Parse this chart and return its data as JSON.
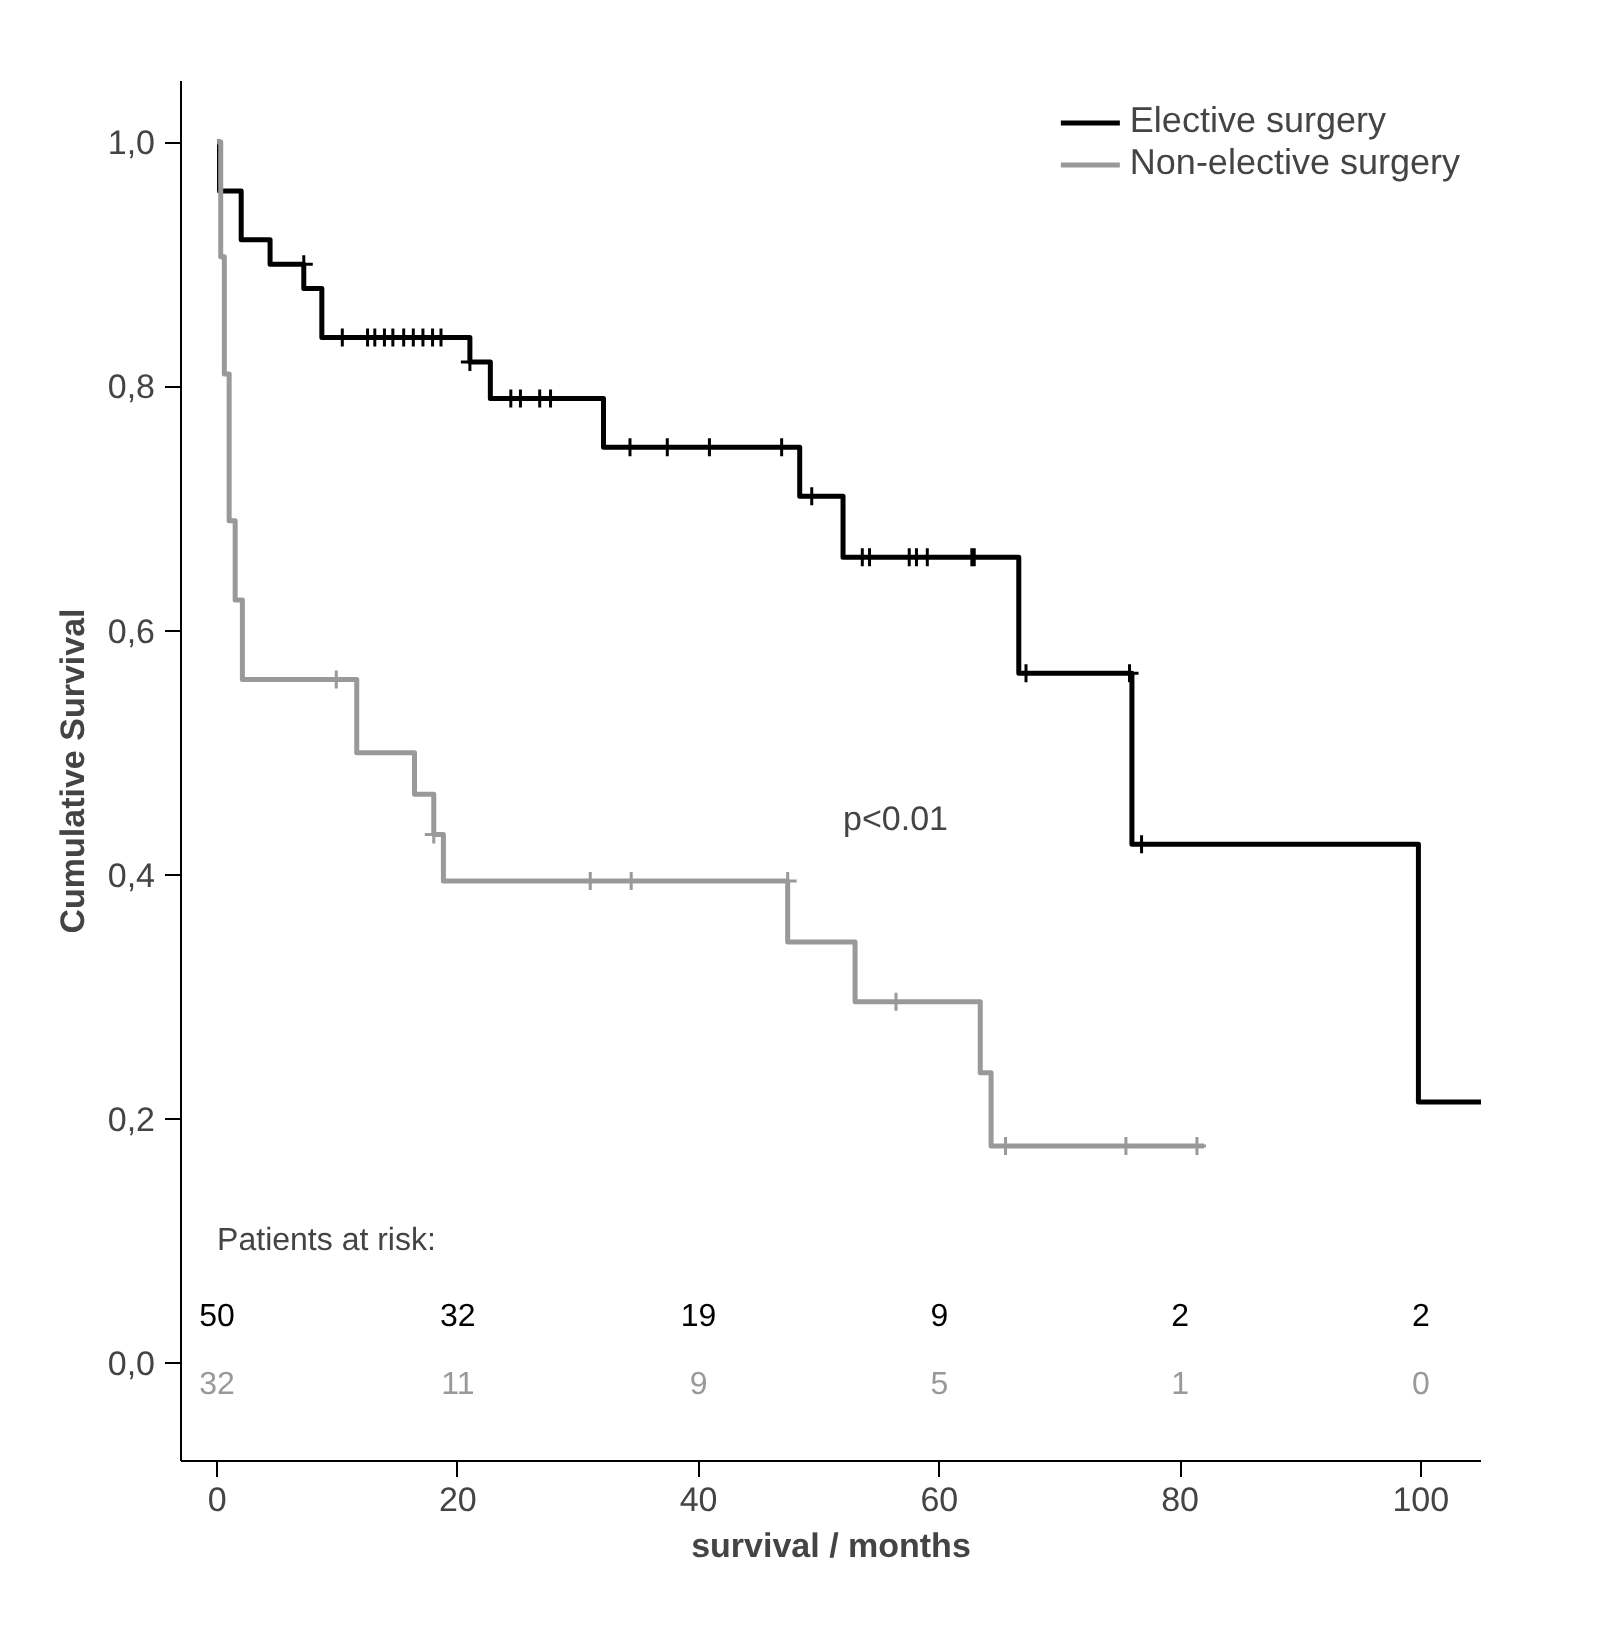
{
  "chart_data": {
    "type": "step",
    "xlabel": "survival / months",
    "ylabel": "Cumulative Survival",
    "xlim": [
      -3,
      105
    ],
    "ylim": [
      -0.08,
      1.05
    ],
    "xticks": [
      0,
      20,
      40,
      60,
      80,
      100
    ],
    "yticks": [
      {
        "value": 0,
        "label": "0,0"
      },
      {
        "value": 0.2,
        "label": "0,2"
      },
      {
        "value": 0.4,
        "label": "0,4"
      },
      {
        "value": 0.6,
        "label": "0,6"
      },
      {
        "value": 0.8,
        "label": "0,8"
      },
      {
        "value": 1,
        "label": "1,0"
      }
    ],
    "grid": false,
    "legend": "top right",
    "line_style": "solid",
    "series": [
      {
        "name": "Elective surgery",
        "color": "#000000",
        "x": [
          0,
          0.2,
          2.0,
          4.4,
          7.2,
          8.7,
          21,
          22.7,
          32.1,
          48.4,
          52,
          66.6,
          76,
          99.8,
          105
        ],
        "values": [
          1.0,
          0.96,
          0.92,
          0.9,
          0.88,
          0.84,
          0.82,
          0.79,
          0.75,
          0.71,
          0.66,
          0.565,
          0.425,
          0.214,
          0.214
        ]
      },
      {
        "name": "Non-elective surgery",
        "color": "#999999",
        "x": [
          0,
          0.3,
          0.6,
          1.0,
          1.5,
          2.1,
          11.6,
          16.4,
          18.0,
          18.8,
          47.4,
          53,
          63.4,
          64.3,
          82
        ],
        "values": [
          1.0,
          0.906,
          0.81,
          0.69,
          0.625,
          0.56,
          0.5,
          0.466,
          0.433,
          0.395,
          0.345,
          0.296,
          0.238,
          0.178,
          0.178
        ]
      },
      {
        "type": "scatter",
        "marker": "cross",
        "color": "#000000",
        "x": [
          7.2,
          10.4,
          12.5,
          13.1,
          13.9,
          14.6,
          15.5,
          16.3,
          17.1,
          17.9,
          18.6,
          21,
          24.4,
          25.2,
          26.8,
          27.7,
          34.3,
          37.4,
          40.9,
          46.9,
          49.4,
          53.6,
          54.2,
          57.5,
          58.1,
          59.0,
          62.7,
          62.9,
          67.2,
          75.8,
          76.8
        ],
        "values": [
          0.9,
          0.84,
          0.84,
          0.84,
          0.84,
          0.84,
          0.84,
          0.84,
          0.84,
          0.84,
          0.84,
          0.82,
          0.79,
          0.79,
          0.79,
          0.79,
          0.75,
          0.75,
          0.75,
          0.75,
          0.71,
          0.66,
          0.66,
          0.66,
          0.66,
          0.66,
          0.66,
          0.66,
          0.565,
          0.565,
          0.425
        ]
      },
      {
        "type": "scatter",
        "marker": "cross",
        "color": "#999999",
        "x": [
          9.9,
          18.0,
          31,
          34.4,
          47.4,
          56.4,
          65.5,
          75.5,
          81.4
        ],
        "values": [
          0.56,
          0.433,
          0.395,
          0.395,
          0.395,
          0.296,
          0.178,
          0.178,
          0.178
        ]
      }
    ],
    "annotations": [
      "p<0.01",
      "Patients at risk:",
      "50",
      "32",
      "19",
      "9",
      "2",
      "2",
      "32",
      "11",
      "9",
      "5",
      "1",
      "0"
    ]
  }
}
